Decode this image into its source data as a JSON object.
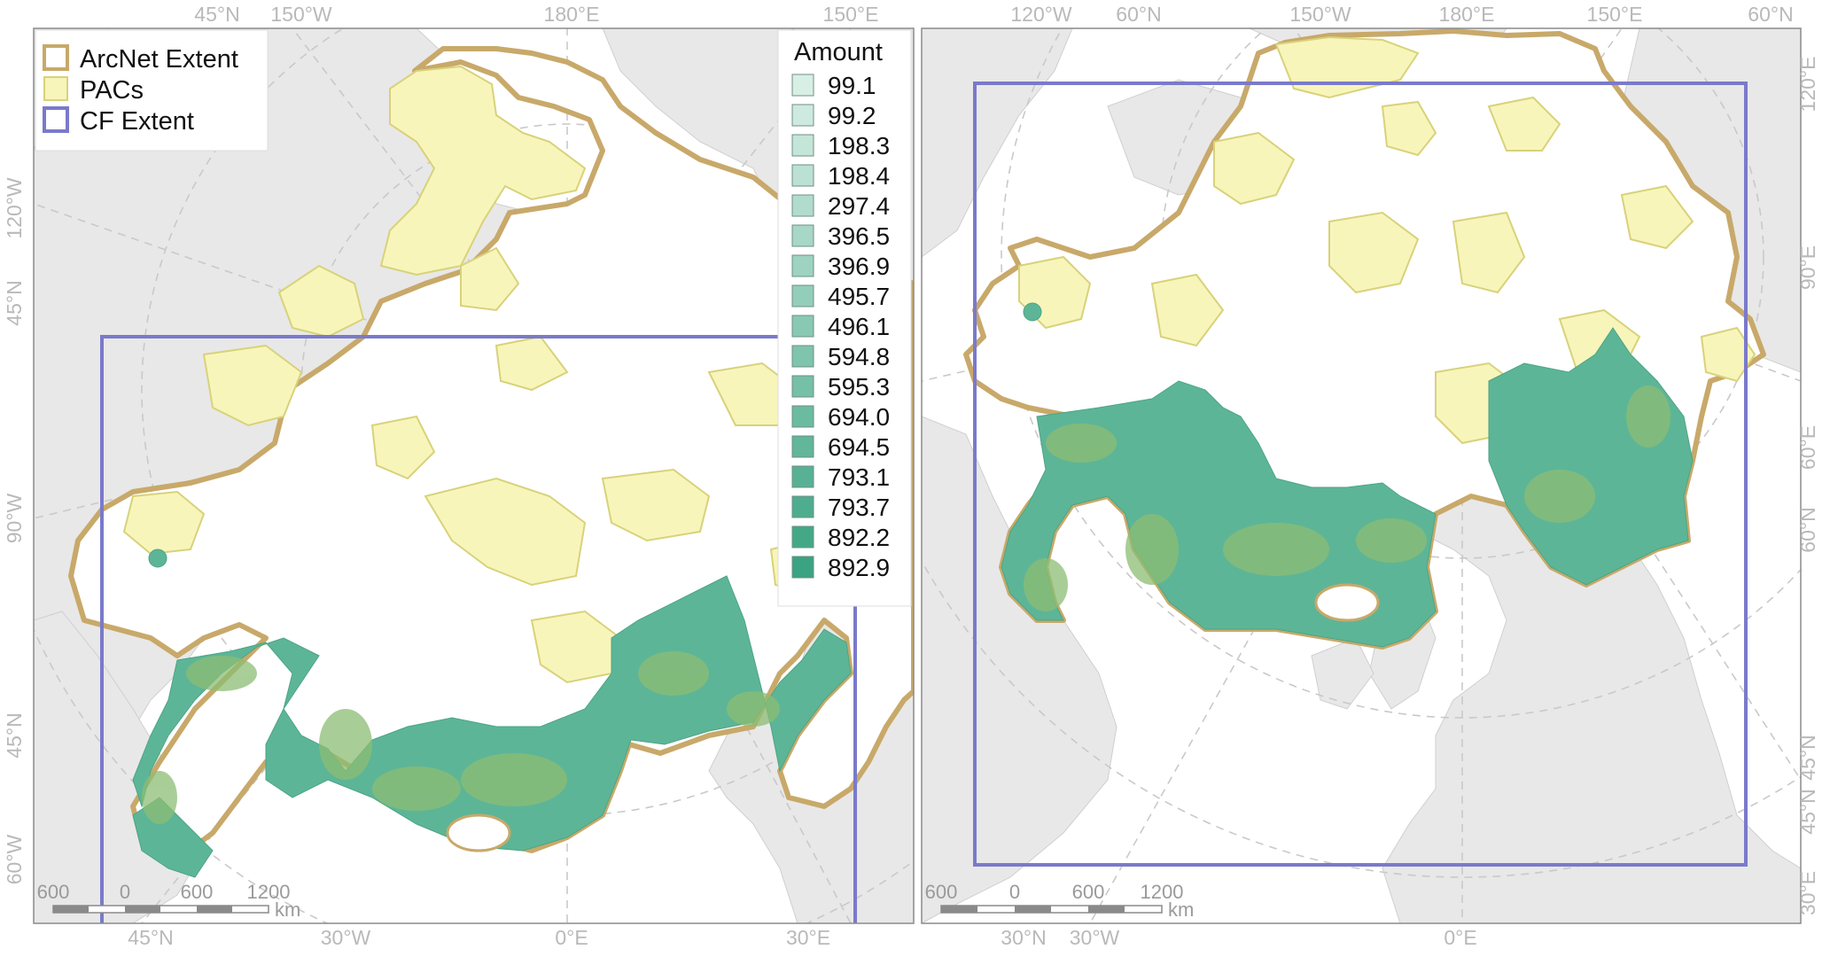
{
  "colors": {
    "land": "#e8e8e8",
    "ocean": "#ffffff",
    "arcnet": "#c8a96a",
    "pacs_fill": "#f8f5bb",
    "pacs_stroke": "#d8d27a",
    "cf_extent": "#7a7acb",
    "amount_low": "#d8efe6",
    "amount_high": "#3aa381",
    "solution": "#5db597",
    "overlap": "#8cbd74"
  },
  "legend": {
    "items": [
      {
        "label": "ArcNet Extent",
        "symbol": "arcnet"
      },
      {
        "label": "PACs",
        "symbol": "pacs"
      },
      {
        "label": "CF Extent",
        "symbol": "cf"
      }
    ]
  },
  "amount_legend": {
    "title": "Amount",
    "values": [
      "99.1",
      "99.2",
      "198.3",
      "198.4",
      "297.4",
      "396.5",
      "396.9",
      "495.7",
      "496.1",
      "594.8",
      "595.3",
      "694.0",
      "694.5",
      "793.1",
      "793.7",
      "892.2",
      "892.9"
    ]
  },
  "left_map": {
    "top_labels": [
      "45°N",
      "150°W",
      "180°E",
      "150°E"
    ],
    "bottom_labels": [
      "45°N",
      "30°W",
      "0°E",
      "30°E"
    ],
    "left_labels": [
      "120°W",
      "45°N",
      "90°W",
      "45°N",
      "60°W"
    ],
    "scale": {
      "ticks": [
        "600",
        "0",
        "600",
        "1200"
      ],
      "unit": "km"
    }
  },
  "right_map": {
    "top_labels": [
      "120°W",
      "60°N",
      "150°W",
      "180°E",
      "150°E",
      "60°N"
    ],
    "bottom_labels": [
      "30°N",
      "30°W",
      "0°E"
    ],
    "right_labels": [
      "120°E",
      "90°E",
      "60°E",
      "60°N",
      "45°N",
      "45°N",
      "30°E"
    ],
    "scale": {
      "ticks": [
        "600",
        "0",
        "600",
        "1200"
      ],
      "unit": "km"
    }
  }
}
